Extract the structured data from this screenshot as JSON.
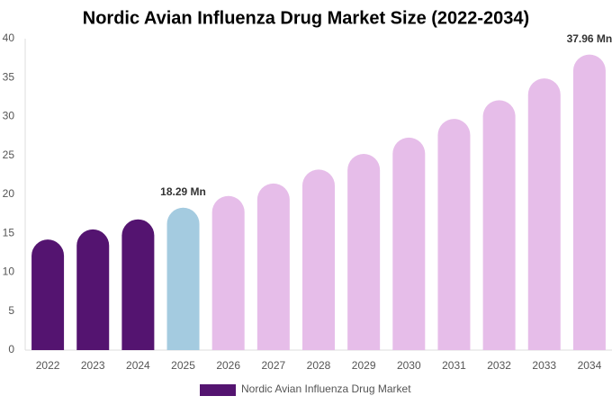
{
  "chart_data": {
    "type": "bar",
    "title": "Nordic Avian Influenza Drug Market Size (2022-2034)",
    "categories": [
      "2022",
      "2023",
      "2024",
      "2025",
      "2026",
      "2027",
      "2028",
      "2029",
      "2030",
      "2031",
      "2032",
      "2033",
      "2034"
    ],
    "series": [
      {
        "name": "Nordic Avian Influenza Drug Market",
        "color": "#541470",
        "values": [
          14.2,
          15.5,
          16.8,
          18.29,
          19.8,
          21.4,
          23.2,
          25.2,
          27.3,
          29.7,
          32.1,
          34.9,
          37.96
        ],
        "value_labels": [
          null,
          null,
          null,
          "18.29 Mn",
          null,
          null,
          null,
          null,
          null,
          null,
          null,
          null,
          "37.96 Mn"
        ],
        "bar_colors": [
          "#541470",
          "#541470",
          "#541470",
          "#a4cbe0",
          "#e6bde9",
          "#e6bde9",
          "#e6bde9",
          "#e6bde9",
          "#e6bde9",
          "#e6bde9",
          "#e6bde9",
          "#e6bde9",
          "#e6bde9"
        ]
      }
    ],
    "ylim": [
      0,
      40
    ],
    "yticks": [
      0,
      5,
      10,
      15,
      20,
      25,
      30,
      35,
      40
    ],
    "grid": false,
    "legend": "bottom"
  }
}
